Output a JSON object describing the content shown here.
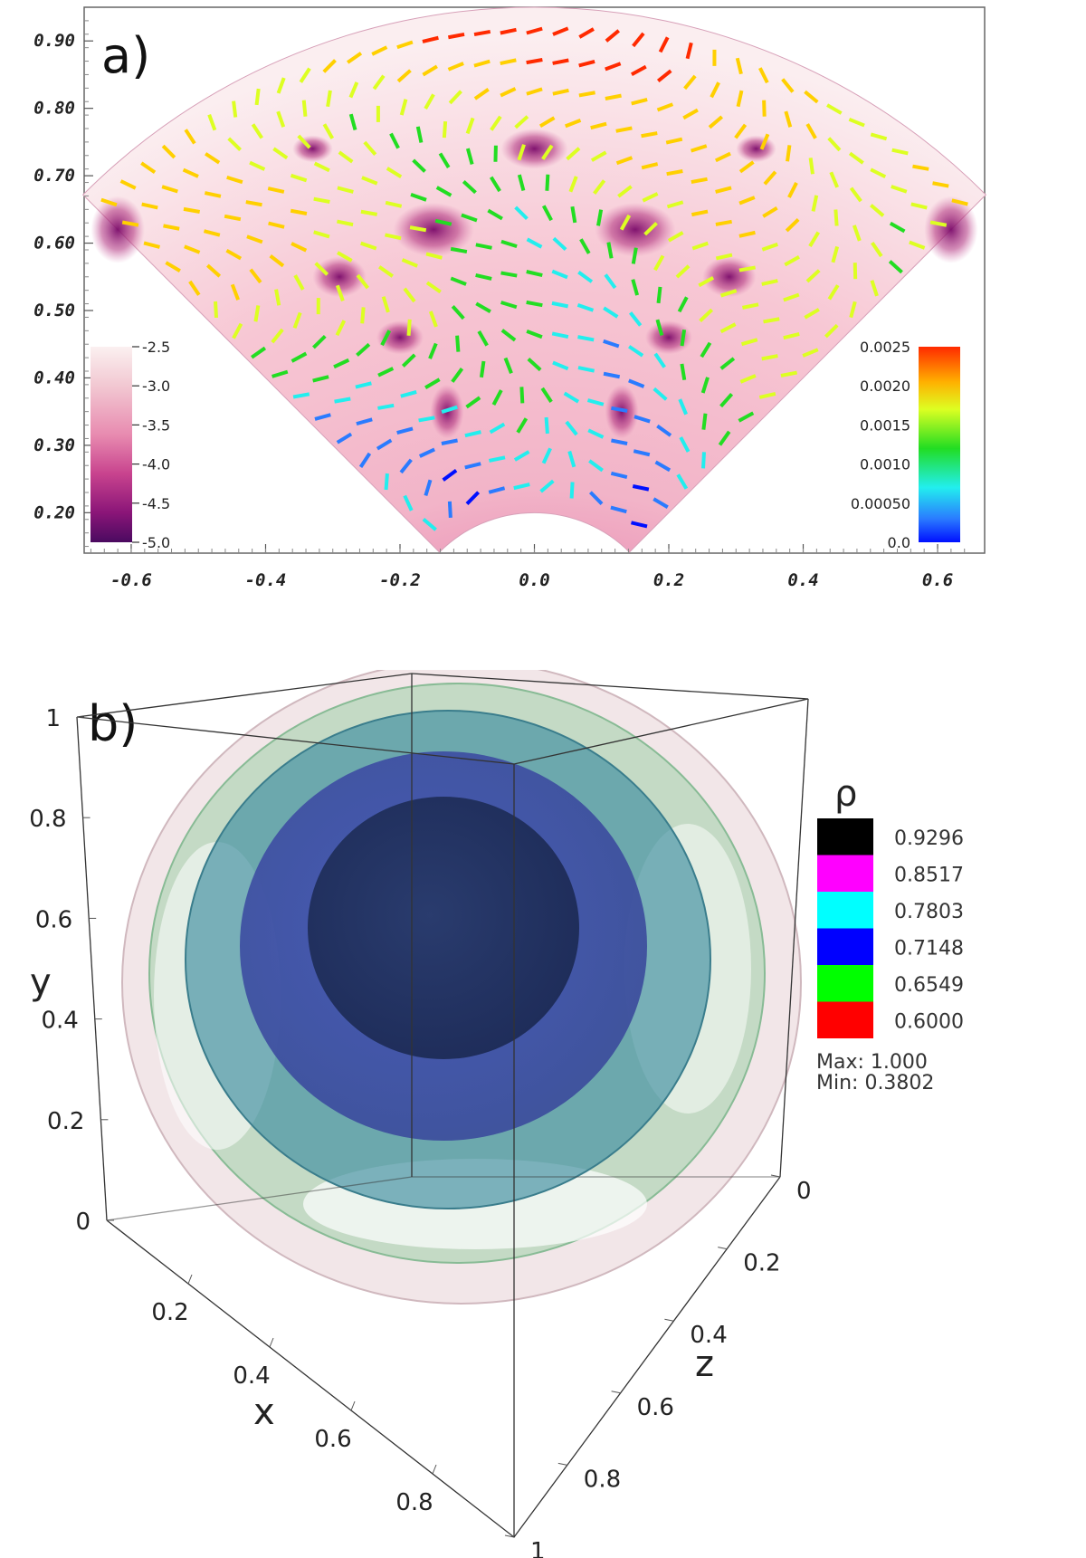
{
  "chart_data": [
    {
      "type": "heatmap",
      "panel_label": "a)",
      "description_type": "sector-shaped scalar field (log scale) with colored vector glyphs",
      "x_ticks": [
        "-0.6",
        "-0.4",
        "-0.2",
        "0.0",
        "0.2",
        "0.4",
        "0.6"
      ],
      "x_tick_values": [
        -0.6,
        -0.4,
        -0.2,
        0.0,
        0.2,
        0.4,
        0.6
      ],
      "y_ticks": [
        "0.90",
        "0.80",
        "0.70",
        "0.60",
        "0.50",
        "0.40",
        "0.30",
        "0.20"
      ],
      "y_tick_values": [
        0.9,
        0.8,
        0.7,
        0.6,
        0.5,
        0.4,
        0.3,
        0.2
      ],
      "xlim": [
        -0.67,
        0.67
      ],
      "ylim": [
        0.14,
        0.95
      ],
      "sector": {
        "inner_radius": 0.2,
        "outer_radius": 0.95,
        "half_angle_deg": 45
      },
      "colorbar_left": {
        "ticks": [
          "-2.5",
          "-3.0",
          "-3.5",
          "-4.0",
          "-4.5",
          "-5.0"
        ],
        "range": [
          -5.0,
          -2.5
        ],
        "colors": [
          "#fbf0f0",
          "#f2c8d2",
          "#e88bb0",
          "#c8438e",
          "#8a1578",
          "#4a0a60"
        ]
      },
      "colorbar_right": {
        "ticks": [
          "0.0025",
          "0.0020",
          "0.0015",
          "0.0010",
          "0.00050",
          "0.0"
        ],
        "range": [
          0.0,
          0.0025
        ],
        "colors": [
          "#ff2a00",
          "#ffd000",
          "#ddff22",
          "#22dd22",
          "#22eeee",
          "#2a7bff",
          "#0010ff"
        ]
      }
    },
    {
      "type": "other",
      "panel_label": "b)",
      "description_type": "3D nested isosurfaces of density in unit cube",
      "axes": {
        "x": {
          "label": "x",
          "ticks": [
            "0.2",
            "0.4",
            "0.6",
            "0.8"
          ]
        },
        "y": {
          "label": "y",
          "ticks": [
            "0",
            "0.2",
            "0.4",
            "0.6",
            "0.8",
            "1"
          ]
        },
        "z": {
          "label": "z",
          "ticks": [
            "0",
            "0.2",
            "0.4",
            "0.6",
            "0.8",
            "1"
          ]
        }
      },
      "legend": {
        "title": "ρ",
        "entries": [
          {
            "value": "0.9296",
            "color": "#000000"
          },
          {
            "value": "0.8517",
            "color": "#ff00ff"
          },
          {
            "value": "0.7803",
            "color": "#00ffff"
          },
          {
            "value": "0.7148",
            "color": "#0000ff"
          },
          {
            "value": "0.6549",
            "color": "#00ff00"
          },
          {
            "value": "0.6000",
            "color": "#ff0000"
          }
        ],
        "max_label": "Max: 1.000",
        "min_label": "Min: 0.3802"
      }
    }
  ]
}
